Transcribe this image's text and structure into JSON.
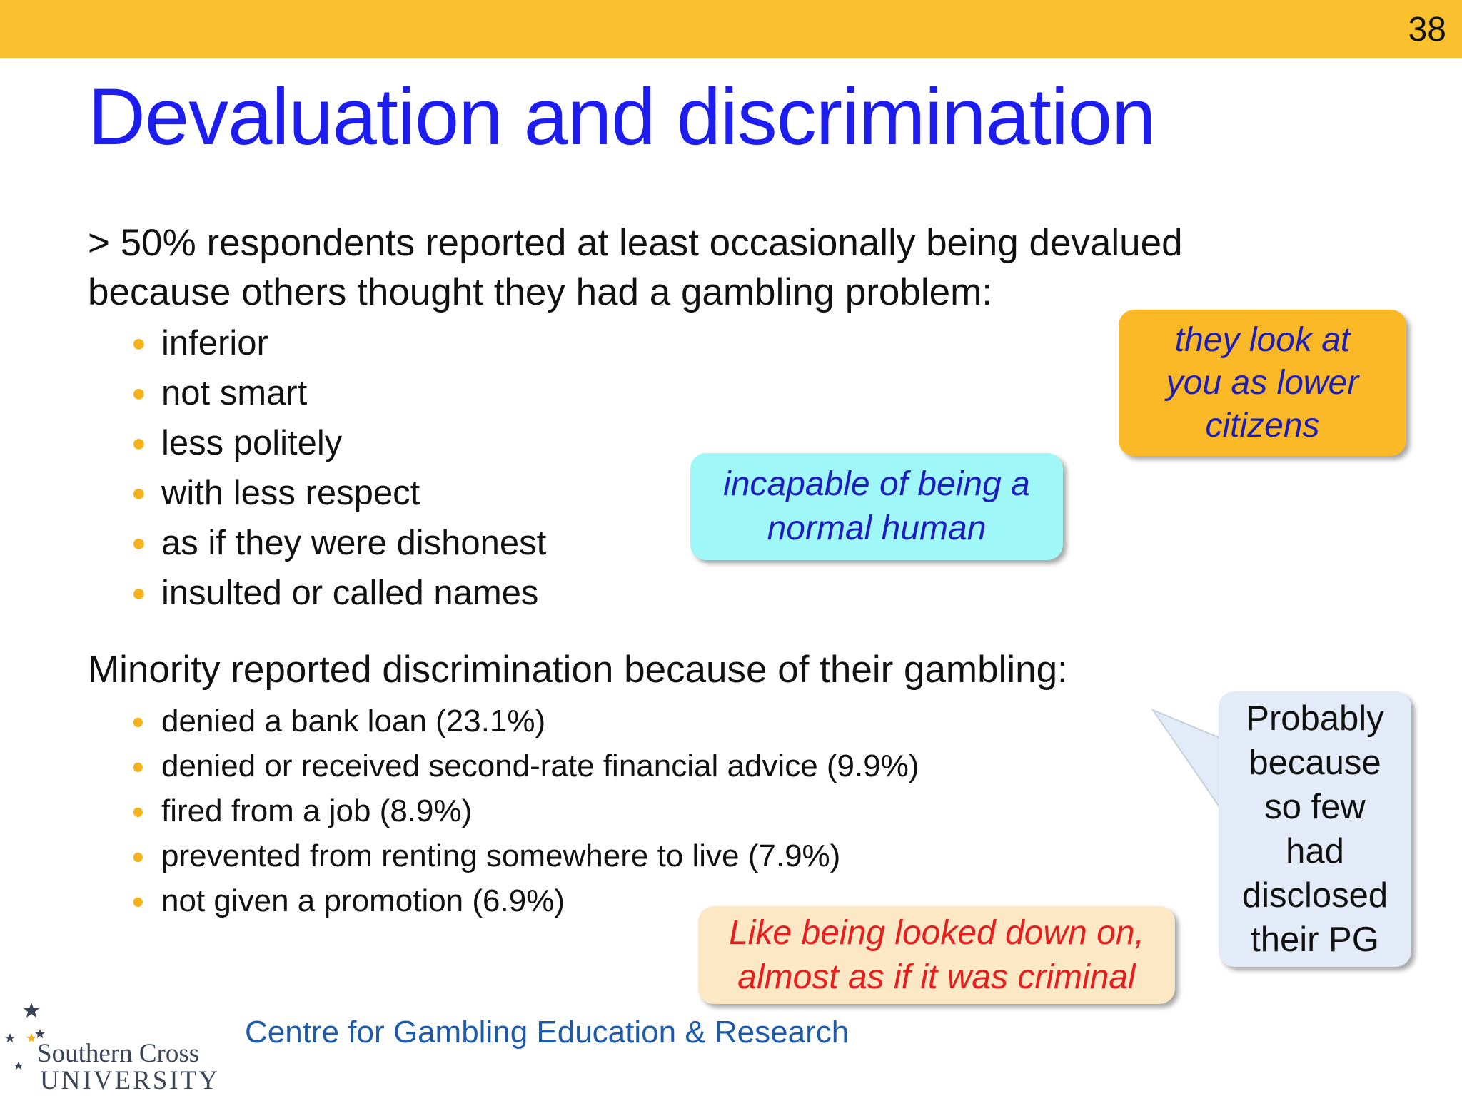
{
  "slide_number": "38",
  "title": "Devaluation and discrimination",
  "intro": {
    "line1": "> 50% respondents reported at least occasionally being devalued",
    "line2": "because others thought they had a gambling problem:"
  },
  "devalued_items": [
    "inferior",
    "not smart",
    "less politely",
    "with less respect",
    "as if they were dishonest",
    "insulted or called names"
  ],
  "minority_heading": "Minority reported discrimination because of their gambling:",
  "discrimination_items": [
    "denied a bank loan (23.1%)",
    "denied or received second-rate financial advice (9.9%)",
    "fired from a job (8.9%)",
    "prevented from renting somewhere to live (7.9%)",
    "not given a promotion (6.9%)"
  ],
  "callouts": {
    "lower_citizens": [
      "they look at",
      "you as lower",
      "citizens"
    ],
    "incapable": [
      "incapable of being a",
      "normal human"
    ],
    "criminal": [
      "Like being looked down on,",
      "almost as if it was criminal"
    ],
    "probably": [
      "Probably",
      "because",
      "so few",
      "had",
      "disclosed",
      "their PG"
    ]
  },
  "footer": {
    "centre": "Centre for Gambling Education & Research",
    "logo_name": "Southern Cross",
    "logo_university": "UNIVERSITY"
  },
  "colors": {
    "top_bar": "#fbc02d",
    "title": "#1d1df0",
    "bullet": "#f5b21a",
    "callout_orange": "#fbb928",
    "callout_cyan": "#9ff7f7",
    "callout_beige": "#fde8c6",
    "callout_blue": "#e3ebf9",
    "footer_text": "#1d5aa8"
  }
}
